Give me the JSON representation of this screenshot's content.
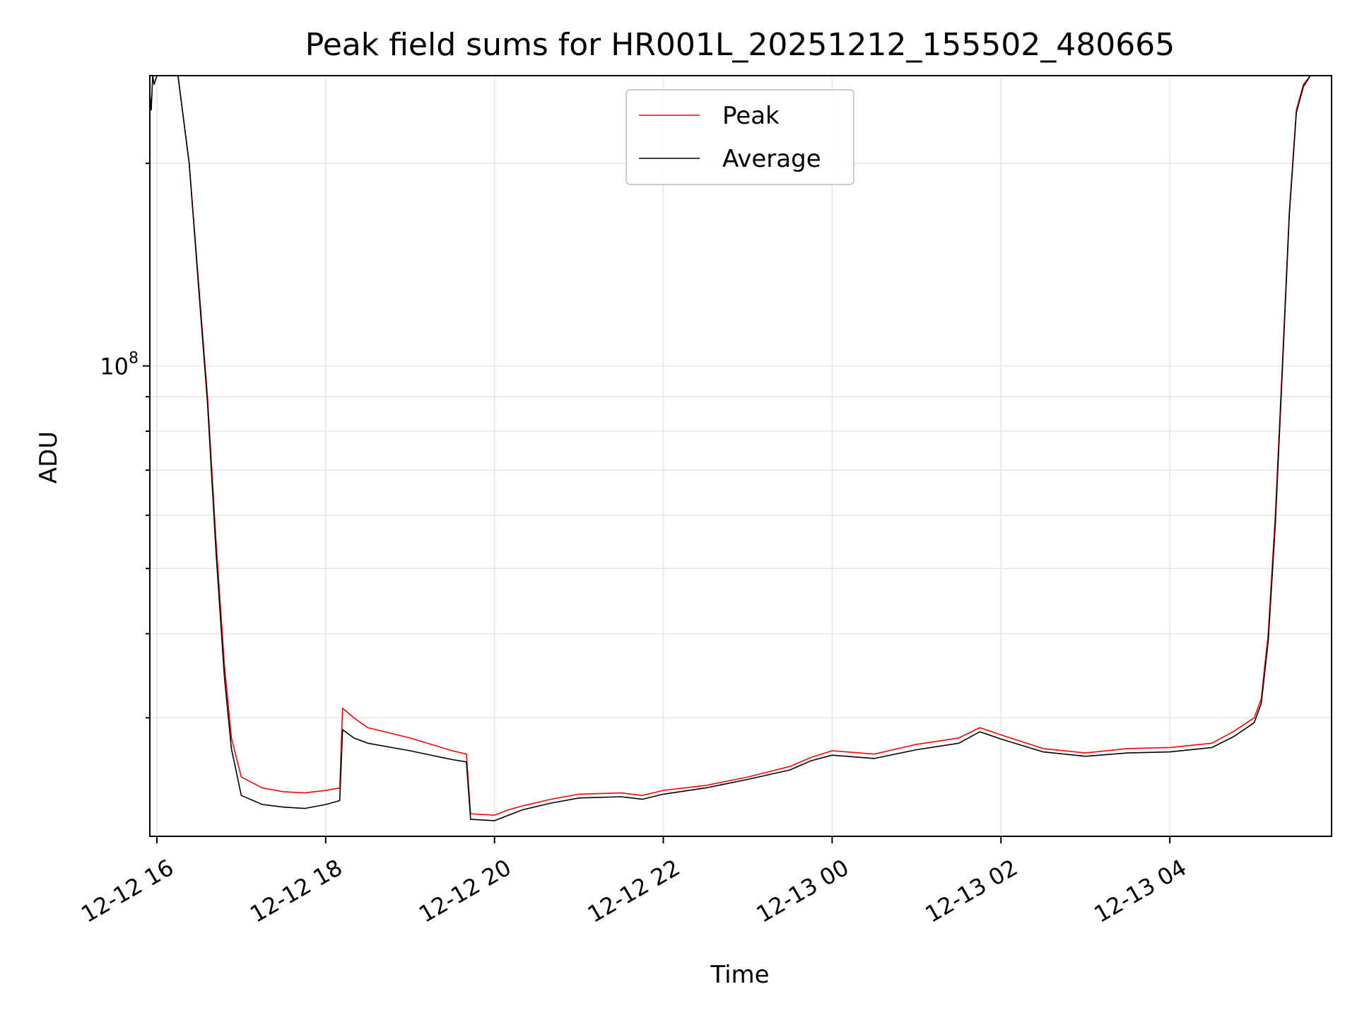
{
  "chart_data": {
    "type": "line",
    "title": "Peak field sums for HR001L_20251212_155502_480665",
    "xlabel": "Time",
    "ylabel": "ADU",
    "y_scale": "log",
    "xlim": [
      "2025-12-12T15:55:00",
      "2025-12-13T05:55:00"
    ],
    "ylim": [
      20000000,
      270000000
    ],
    "grid": true,
    "legend_position": "top-center",
    "x_ticks": [
      {
        "at": "2025-12-12T16:00:00",
        "label": "12-12 16"
      },
      {
        "at": "2025-12-12T18:00:00",
        "label": "12-12 18"
      },
      {
        "at": "2025-12-12T20:00:00",
        "label": "12-12 20"
      },
      {
        "at": "2025-12-12T22:00:00",
        "label": "12-12 22"
      },
      {
        "at": "2025-12-13T00:00:00",
        "label": "12-13 00"
      },
      {
        "at": "2025-12-13T02:00:00",
        "label": "12-13 02"
      },
      {
        "at": "2025-12-13T04:00:00",
        "label": "12-13 04"
      }
    ],
    "y_major_tick": {
      "value": 100000000,
      "label_base": "10",
      "label_exp": "8"
    },
    "y_minor_ticks": [
      30000000,
      40000000,
      50000000,
      60000000,
      70000000,
      80000000,
      90000000,
      200000000
    ],
    "series": [
      {
        "name": "Peak",
        "color": "#ff0000",
        "x": [
          "2025-12-12T15:55:00",
          "2025-12-12T16:15:00",
          "2025-12-12T16:23:00",
          "2025-12-12T16:30:00",
          "2025-12-12T16:36:00",
          "2025-12-12T16:42:00",
          "2025-12-12T16:48:00",
          "2025-12-12T16:53:00",
          "2025-12-12T17:00:00",
          "2025-12-12T17:15:00",
          "2025-12-12T17:30:00",
          "2025-12-12T17:45:00",
          "2025-12-12T18:00:00",
          "2025-12-12T18:10:00",
          "2025-12-12T18:12:00",
          "2025-12-12T18:20:00",
          "2025-12-12T18:30:00",
          "2025-12-12T19:00:00",
          "2025-12-12T19:30:00",
          "2025-12-12T19:40:00",
          "2025-12-12T19:43:00",
          "2025-12-12T20:00:00",
          "2025-12-12T20:05:00",
          "2025-12-12T20:10:00",
          "2025-12-12T20:20:00",
          "2025-12-12T20:40:00",
          "2025-12-12T21:00:00",
          "2025-12-12T21:30:00",
          "2025-12-12T21:45:00",
          "2025-12-12T22:00:00",
          "2025-12-12T22:30:00",
          "2025-12-12T23:00:00",
          "2025-12-12T23:30:00",
          "2025-12-12T23:45:00",
          "2025-12-13T00:00:00",
          "2025-12-13T00:30:00",
          "2025-12-13T01:00:00",
          "2025-12-13T01:30:00",
          "2025-12-13T01:45:00",
          "2025-12-13T02:00:00",
          "2025-12-13T02:30:00",
          "2025-12-13T03:00:00",
          "2025-12-13T03:30:00",
          "2025-12-13T04:00:00",
          "2025-12-13T04:30:00",
          "2025-12-13T04:45:00",
          "2025-12-13T05:00:00",
          "2025-12-13T05:05:00",
          "2025-12-13T05:10:00",
          "2025-12-13T05:15:00",
          "2025-12-13T05:20:00",
          "2025-12-13T05:25:00",
          "2025-12-13T05:30:00",
          "2025-12-13T05:35:00",
          "2025-12-13T05:40:00",
          "2025-12-13T05:55:00"
        ],
        "y": [
          270000000,
          270000000,
          200000000,
          130000000,
          90000000,
          55000000,
          36000000,
          28000000,
          24500000,
          23600000,
          23300000,
          23200000,
          23400000,
          23600000,
          31000000,
          30000000,
          29000000,
          28000000,
          26800000,
          26500000,
          21600000,
          21500000,
          21700000,
          21900000,
          22200000,
          22700000,
          23100000,
          23200000,
          23000000,
          23400000,
          23800000,
          24500000,
          25400000,
          26200000,
          26800000,
          26500000,
          27400000,
          28000000,
          29000000,
          28300000,
          27000000,
          26600000,
          27000000,
          27100000,
          27500000,
          28600000,
          30000000,
          32000000,
          40000000,
          60000000,
          100000000,
          170000000,
          240000000,
          262000000,
          270000000,
          270000000
        ]
      },
      {
        "name": "Average",
        "color": "#000000",
        "x": [
          "2025-12-12T15:55:00",
          "2025-12-12T15:56:00",
          "2025-12-12T15:57:00",
          "2025-12-12T15:58:00",
          "2025-12-12T16:00:00",
          "2025-12-12T16:15:00",
          "2025-12-12T16:23:00",
          "2025-12-12T16:30:00",
          "2025-12-12T16:36:00",
          "2025-12-12T16:42:00",
          "2025-12-12T16:48:00",
          "2025-12-12T16:53:00",
          "2025-12-12T17:00:00",
          "2025-12-12T17:15:00",
          "2025-12-12T17:30:00",
          "2025-12-12T17:45:00",
          "2025-12-12T18:00:00",
          "2025-12-12T18:10:00",
          "2025-12-12T18:12:00",
          "2025-12-12T18:20:00",
          "2025-12-12T18:30:00",
          "2025-12-12T19:00:00",
          "2025-12-12T19:30:00",
          "2025-12-12T19:40:00",
          "2025-12-12T19:43:00",
          "2025-12-12T20:00:00",
          "2025-12-12T20:05:00",
          "2025-12-12T20:10:00",
          "2025-12-12T20:20:00",
          "2025-12-12T20:40:00",
          "2025-12-12T21:00:00",
          "2025-12-12T21:30:00",
          "2025-12-12T21:45:00",
          "2025-12-12T22:00:00",
          "2025-12-12T22:30:00",
          "2025-12-12T23:00:00",
          "2025-12-12T23:30:00",
          "2025-12-12T23:45:00",
          "2025-12-13T00:00:00",
          "2025-12-13T00:30:00",
          "2025-12-13T01:00:00",
          "2025-12-13T01:30:00",
          "2025-12-13T01:45:00",
          "2025-12-13T02:00:00",
          "2025-12-13T02:30:00",
          "2025-12-13T03:00:00",
          "2025-12-13T03:30:00",
          "2025-12-13T04:00:00",
          "2025-12-13T04:30:00",
          "2025-12-13T04:45:00",
          "2025-12-13T05:00:00",
          "2025-12-13T05:05:00",
          "2025-12-13T05:10:00",
          "2025-12-13T05:15:00",
          "2025-12-13T05:20:00",
          "2025-12-13T05:25:00",
          "2025-12-13T05:30:00",
          "2025-12-13T05:35:00",
          "2025-12-13T05:40:00",
          "2025-12-13T05:55:00"
        ],
        "y": [
          255000000,
          240000000,
          270000000,
          262000000,
          270000000,
          270000000,
          200000000,
          128000000,
          88000000,
          53000000,
          34500000,
          27000000,
          23000000,
          22300000,
          22100000,
          22000000,
          22300000,
          22600000,
          28800000,
          28000000,
          27500000,
          26800000,
          26000000,
          25800000,
          21200000,
          21100000,
          21300000,
          21500000,
          21900000,
          22400000,
          22800000,
          22900000,
          22700000,
          23100000,
          23600000,
          24300000,
          25100000,
          25900000,
          26400000,
          26100000,
          26900000,
          27500000,
          28600000,
          27900000,
          26700000,
          26300000,
          26600000,
          26700000,
          27100000,
          28100000,
          29500000,
          31500000,
          39000000,
          58000000,
          98000000,
          168000000,
          238000000,
          260000000,
          270000000,
          270000000
        ]
      }
    ]
  }
}
